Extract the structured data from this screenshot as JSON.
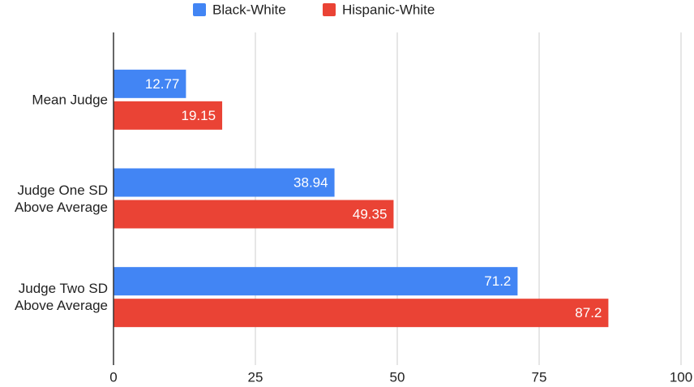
{
  "chart_data": {
    "type": "hbar",
    "categories": [
      "Mean Judge",
      "Judge One SD Above Average",
      "Judge Two SD Above Average"
    ],
    "series": [
      {
        "name": "Black-White",
        "color": "#4285f4",
        "values": [
          12.77,
          38.94,
          71.2
        ]
      },
      {
        "name": "Hispanic-White",
        "color": "#ea4335",
        "values": [
          19.15,
          49.35,
          87.2
        ]
      }
    ],
    "xlim": [
      0,
      100
    ],
    "xticks": [
      0,
      25,
      50,
      75,
      100
    ],
    "grid": true,
    "legend": "top"
  }
}
